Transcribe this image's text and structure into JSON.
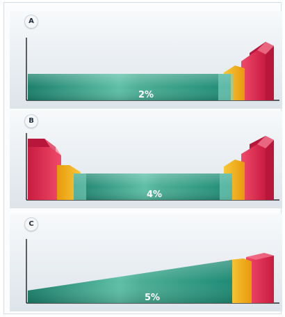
{
  "panels": [
    {
      "label": "A",
      "value_text": "2%",
      "shape": "flat bar with stepped rise at right end"
    },
    {
      "label": "B",
      "value_text": "4%",
      "shape": "flat bar with stepped rise at both ends"
    },
    {
      "label": "C",
      "value_text": "5%",
      "shape": "wedge rising from left to a stepped block at right"
    }
  ],
  "colors": {
    "bar_teal": "#1b8b76",
    "bar_teal_light": "#8fd8c3",
    "step_yellow": "#f3b31a",
    "step_red": "#e02a50",
    "axis": "#2c2c2c",
    "panel_bg": "#e9eef2"
  }
}
